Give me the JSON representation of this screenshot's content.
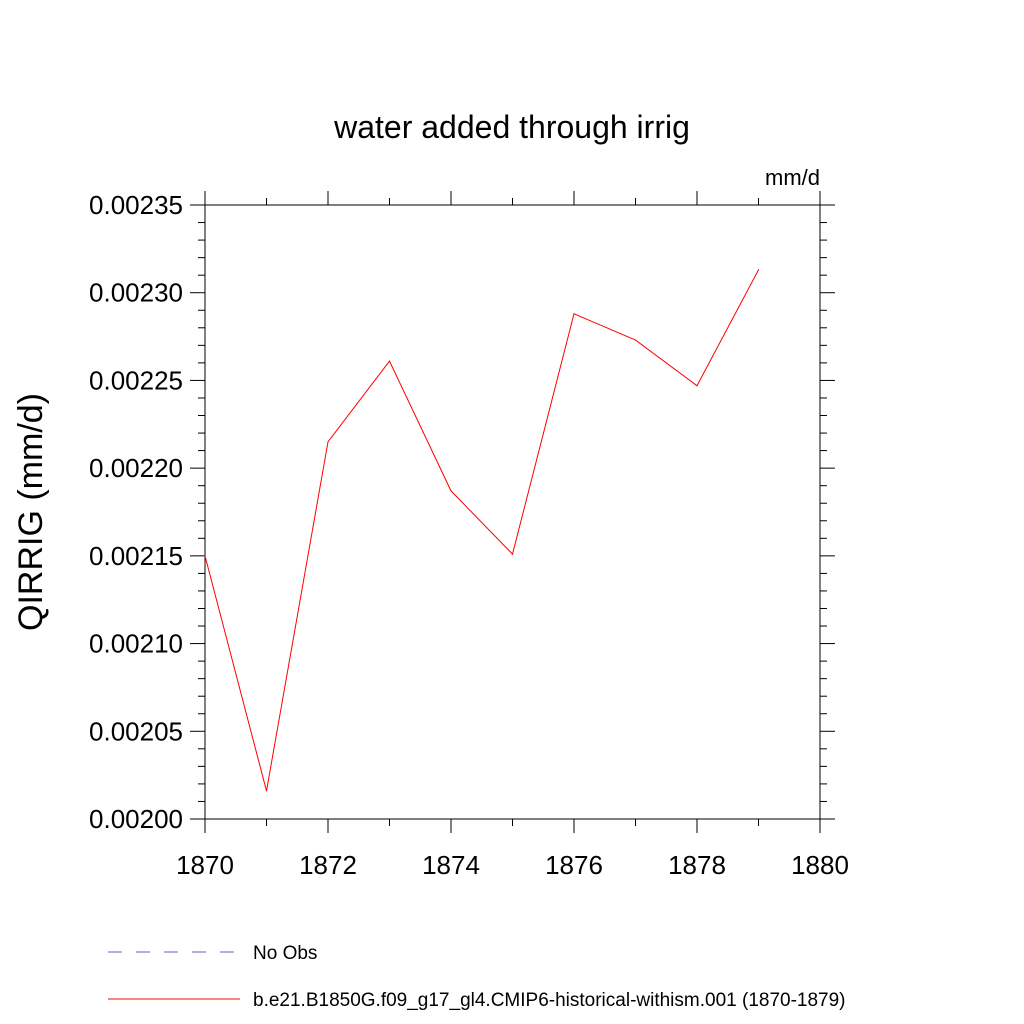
{
  "chart_data": {
    "type": "line",
    "title": "water added through irrig",
    "units_label": "mm/d",
    "ylabel": "QIRRIG  (mm/d)",
    "xlabel": "",
    "xlim": [
      1870,
      1880
    ],
    "ylim": [
      0.002,
      0.00235
    ],
    "x_ticks": [
      1870,
      1872,
      1874,
      1876,
      1878,
      1880
    ],
    "x_tick_labels": [
      "1870",
      "1872",
      "1874",
      "1876",
      "1878",
      "1880"
    ],
    "y_ticks": [
      0.002,
      0.00205,
      0.0021,
      0.00215,
      0.0022,
      0.00225,
      0.0023,
      0.00235
    ],
    "y_tick_labels": [
      "0.00200",
      "0.00205",
      "0.00210",
      "0.00215",
      "0.00220",
      "0.00225",
      "0.00230",
      "0.00235"
    ],
    "grid": false,
    "legend_position": "bottom",
    "series": [
      {
        "name": "b.e21.B1850G.f09_g17_gl4.CMIP6-historical-withism.001 (1870-1879)",
        "color": "#ff0000",
        "line_style": "solid",
        "x": [
          1870,
          1871,
          1872,
          1873,
          1874,
          1875,
          1876,
          1877,
          1878,
          1879
        ],
        "y": [
          0.00215,
          0.002016,
          0.002215,
          0.002261,
          0.002187,
          0.002151,
          0.002288,
          0.002273,
          0.002247,
          0.002313
        ]
      }
    ],
    "legend": [
      {
        "label": "No Obs",
        "color": "#6a5acd",
        "line_style": "dashed"
      },
      {
        "label": "b.e21.B1850G.f09_g17_gl4.CMIP6-historical-withism.001 (1870-1879)",
        "color": "#ff0000",
        "line_style": "solid"
      }
    ]
  }
}
